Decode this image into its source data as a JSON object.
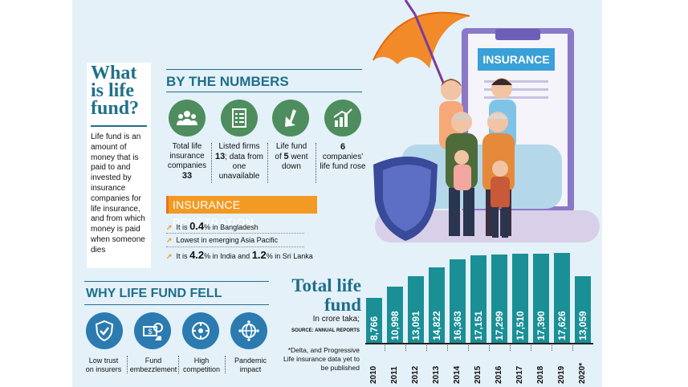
{
  "lifefund": {
    "title_lines": [
      "What",
      "is life",
      "fund?"
    ],
    "description": "Life fund is an amount of money that is paid to and invested by insurance companies for life insurance, and from which money is paid when someone dies"
  },
  "numbers": {
    "heading": "BY THE NUMBERS",
    "stats": [
      {
        "icon": "people-icon",
        "lines": [
          "Total life",
          "insurance",
          "companies"
        ],
        "bold": "33"
      },
      {
        "icon": "checklist-icon",
        "pre": "Listed firms",
        "bold": "13",
        "post": "; data from one unavailable"
      },
      {
        "icon": "arrow-down-icon",
        "pre": "Life fund of",
        "bold": "5",
        "post": "went down"
      },
      {
        "icon": "bar-chart-icon",
        "bold": "6",
        "post": "companies' life fund rose"
      }
    ]
  },
  "penetration": {
    "heading": "INSURANCE PENETRATION",
    "rows": [
      {
        "pre": "It is ",
        "bold1": "0.4",
        "mid": "% in Bangladesh"
      },
      {
        "pre": "Lowest in emerging Asia Pacific"
      },
      {
        "pre": "It is ",
        "bold1": "4.2",
        "mid": "% in India and ",
        "bold2": "1.2",
        "post": "% in Sri Lanka"
      }
    ]
  },
  "illustration": {
    "board_label": "INSURANCE"
  },
  "why": {
    "heading": "WHY LIFE FUND FELL",
    "items": [
      {
        "icon": "shield-check-icon",
        "lines": [
          "Low trust",
          "on insurers"
        ]
      },
      {
        "icon": "money-fraud-icon",
        "lines": [
          "Fund",
          "embezzlement"
        ]
      },
      {
        "icon": "competition-icon",
        "lines": [
          "High",
          "competition"
        ]
      },
      {
        "icon": "globe-virus-icon",
        "lines": [
          "Pandemic",
          "impact"
        ]
      }
    ]
  },
  "chart_data": {
    "type": "bar",
    "title": "Total life fund",
    "subtitle": "In crore taka;",
    "source": "SOURCE: ANNUAL REPORTS",
    "note": "*Delta, and Progressive Life insurance data yet to be published",
    "categories": [
      "2010",
      "2011",
      "2012",
      "2013",
      "2014",
      "2015",
      "2016",
      "2017",
      "2018",
      "2019",
      "2020*"
    ],
    "values": [
      8766,
      10998,
      13091,
      14822,
      16363,
      17151,
      17299,
      17510,
      17390,
      17626,
      13059
    ],
    "labels": [
      "8,766",
      "10,998",
      "13,091",
      "14,822",
      "16,363",
      "17,151",
      "17,299",
      "17,510",
      "17,390",
      "17,626",
      "13,059"
    ],
    "ylim": [
      0,
      17626
    ],
    "color": "#1a8f96"
  }
}
